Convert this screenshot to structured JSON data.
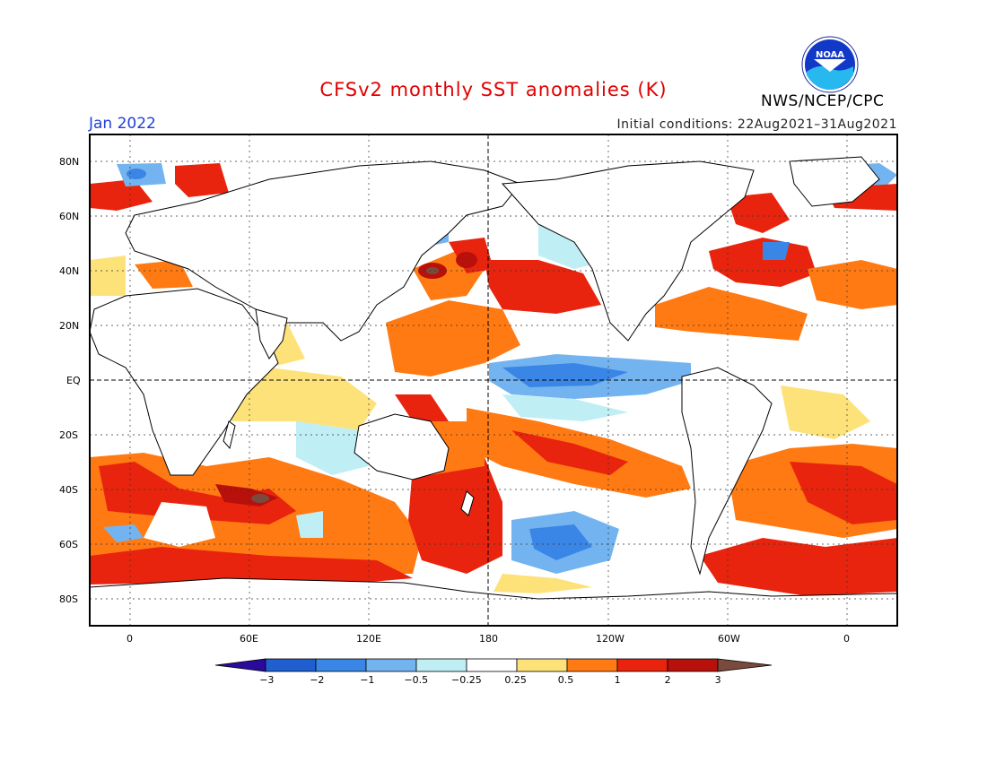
{
  "header": {
    "title": "CFSv2 monthly SST anomalies (K)",
    "month": "Jan 2022",
    "initial_conditions": "Initial conditions: 22Aug2021–31Aug2021",
    "agency": "NWS/NCEP/CPC",
    "logo_text": "NOAA"
  },
  "map": {
    "lat_labels": [
      "80N",
      "60N",
      "40N",
      "20N",
      "EQ",
      "20S",
      "40S",
      "60S",
      "80S"
    ],
    "lon_labels": [
      "0",
      "60E",
      "120E",
      "180",
      "120W",
      "60W",
      "0"
    ]
  },
  "colorbar": {
    "labels": [
      "−3",
      "−2",
      "−1",
      "−0.5",
      "−0.25",
      "0.25",
      "0.5",
      "1",
      "2",
      "3"
    ],
    "colors": [
      "#2a0a9c",
      "#1f5fd0",
      "#3a86e6",
      "#73b4f0",
      "#bfeef5",
      "#ffffff",
      "#fde27a",
      "#ff7a12",
      "#e8240e",
      "#b8100a",
      "#7a4a3c"
    ]
  },
  "colors": {
    "warm_weak": "#fde27a",
    "warm_mid": "#ff7a12",
    "warm_strong": "#e8240e",
    "warm_extreme": "#b8100a",
    "cool_weak": "#bfeef5",
    "cool_mid": "#73b4f0",
    "cool_strong": "#3a86e6"
  }
}
